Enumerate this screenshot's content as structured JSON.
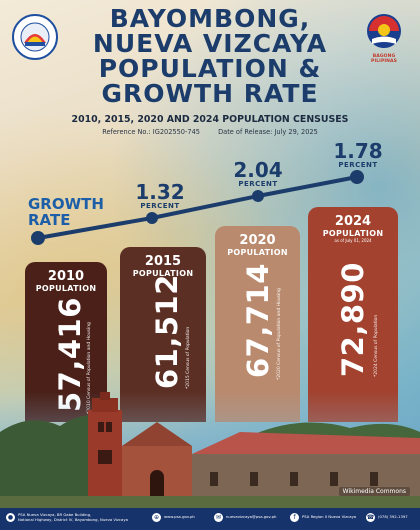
{
  "header": {
    "title_lines": [
      "BAYOMBONG,",
      "NUEVA VIZCAYA",
      "POPULATION &",
      "GROWTH RATE"
    ],
    "subtitle": "2010, 2015, 2020 AND 2024 POPULATION CENSUSES",
    "reference": "Reference No.: IG202550-745",
    "release": "Date of Release: July 29, 2025",
    "right_logo_label": "BAGONG PILIPINAS"
  },
  "growth": {
    "label_lines": [
      "GROWTH",
      "RATE"
    ],
    "rates": [
      {
        "value": "1.32",
        "unit": "PERCENT"
      },
      {
        "value": "2.04",
        "unit": "PERCENT"
      },
      {
        "value": "1.78",
        "unit": "PERCENT"
      }
    ]
  },
  "cards": [
    {
      "year": "2010",
      "label": "POPULATION",
      "value": "57,416",
      "source": "*2010 Census of Population and Housing",
      "color": "#4a2019"
    },
    {
      "year": "2015",
      "label": "POPULATION",
      "value": "61,512",
      "source": "*2015 Census of Population",
      "color": "#5c2f24"
    },
    {
      "year": "2020",
      "label": "POPULATION",
      "value": "67,714",
      "source": "*2020 Census of Population and Housing",
      "color": "#b98a6e"
    },
    {
      "year": "2024",
      "label": "POPULATION",
      "as_of": "as of July 01, 2024",
      "value": "72,890",
      "source": "*2024 Census of Population",
      "color": "#a2422f"
    }
  ],
  "photo_credit": "Wikimedia Commons",
  "footer": {
    "address": [
      "PSA Nueva Vizcaya, BR Gabe Building,",
      "National Highway, District IV, Bayombong, Nueva Vizcaya"
    ],
    "website": "www.psa.gov.ph",
    "email": "nuevavizcaya@psa.gov.ph",
    "facebook": "PSA Region II Nueva Vizcaya",
    "phone": "(078) 392-1397"
  },
  "colors": {
    "title": "#1c3d6b",
    "accent_blue": "#1c5ea8",
    "footer_bg": "#17336b"
  },
  "icons": [
    "location-icon",
    "globe-icon",
    "mail-icon",
    "facebook-icon",
    "phone-icon"
  ]
}
